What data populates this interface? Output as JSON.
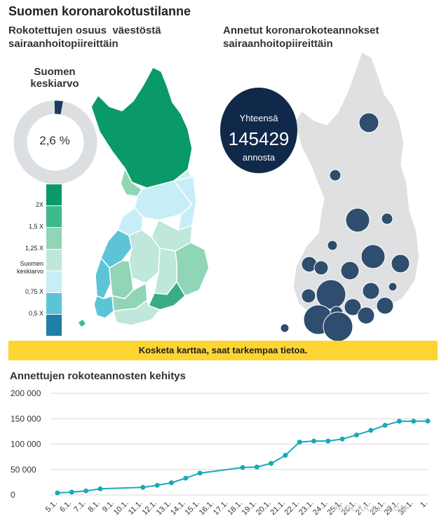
{
  "header": {
    "title": "Suomen koronarokotustilanne",
    "left_subtitle_line1": "Rokotettujen osuus  väestöstä",
    "left_subtitle_line2": "sairaanhoitopiireittäin",
    "right_subtitle_line1": "Annetut koronarokoteannokset",
    "right_subtitle_line2": "sairaanhoitopiireittäin"
  },
  "donut": {
    "label_line1": "Suomen",
    "label_line2": "keskiarvo",
    "value_text": "2,6 %",
    "fraction": 0.026,
    "color_fill": "#1d3a5f",
    "color_track": "#dcdfe2"
  },
  "legend": {
    "items": [
      {
        "label": "2X",
        "color": "#0a9968"
      },
      {
        "label": "1,5 X",
        "color": "#3dba8c"
      },
      {
        "label": "1,25 X",
        "color": "#8fd5b6"
      },
      {
        "label": "Suomen keskiarvo",
        "color": "#bfe7dc"
      },
      {
        "label": "0,75 X",
        "color": "#c7eef7"
      },
      {
        "label": "0,5 X",
        "color": "#5cc4d6"
      },
      {
        "label": "",
        "color": "#1f7fa6"
      }
    ]
  },
  "total": {
    "line1": "Yhteensä",
    "number": "145429",
    "line3": "annosta",
    "color": "#10294a"
  },
  "banner": {
    "text": "Kosketa karttaa, saat tarkempaa tietoa.",
    "color": "#fdd431"
  },
  "line_chart": {
    "title": "Annettujen rokoteannosten kehitys"
  },
  "watermark": "YAPLAKAL.COM",
  "chart_data": [
    {
      "type": "line",
      "title": "Annettujen rokoteannosten kehitys",
      "xlabel": "",
      "ylabel": "",
      "ylim": [
        0,
        200000
      ],
      "yticks": [
        0,
        50000,
        100000,
        150000,
        200000
      ],
      "ytick_labels": [
        "0",
        "50 000",
        "100 000",
        "150 000",
        "200 000"
      ],
      "grid": true,
      "series_color": "#19a9b5",
      "x": [
        "5.1.",
        "6.1.",
        "7.1.",
        "8.1.",
        "9.1.",
        "10.1.",
        "11.1.",
        "12.1.",
        "13.1.",
        "14.1.",
        "15.1.",
        "16.1.",
        "17.1.",
        "18.1.",
        "19.1.",
        "20.1.",
        "21.1.",
        "22.1.",
        "23.1.",
        "24.1.",
        "25.1.",
        "26.1.",
        "27.1.",
        "28.1.",
        "29.1.",
        "30.1.",
        "1.2."
      ],
      "x_tick_labels": [
        "5.1.",
        "6.1.",
        "7.1.",
        "8.1.",
        "9.1.",
        "10.1.",
        "11.1.",
        "12.1.",
        "13.1.",
        "14.1.",
        "15.1.",
        "16.1.",
        "17.1.",
        "18.1.",
        "19.1.",
        "20.1.",
        "21.1.",
        "22.1.",
        "23.1.",
        "24.1.",
        "25.1.",
        "26.1.",
        "27.1.",
        "28.1.",
        "29.1.",
        "30.1.",
        "1."
      ],
      "series": [
        {
          "points": [
            {
              "x": "5.1.",
              "y": 4000
            },
            {
              "x": "6.1.",
              "y": 5500
            },
            {
              "x": "7.1.",
              "y": 8000
            },
            {
              "x": "8.1.",
              "y": 12000
            },
            {
              "x": "11.1.",
              "y": 15000
            },
            {
              "x": "12.1.",
              "y": 19000
            },
            {
              "x": "13.1.",
              "y": 24000
            },
            {
              "x": "14.1.",
              "y": 33000
            },
            {
              "x": "15.1.",
              "y": 43000
            },
            {
              "x": "18.1.",
              "y": 54000
            },
            {
              "x": "19.1.",
              "y": 55000
            },
            {
              "x": "20.1.",
              "y": 62000
            },
            {
              "x": "21.1.",
              "y": 78000
            },
            {
              "x": "22.1.",
              "y": 104000
            },
            {
              "x": "23.1.",
              "y": 106000
            },
            {
              "x": "24.1.",
              "y": 106000
            },
            {
              "x": "25.1.",
              "y": 110000
            },
            {
              "x": "26.1.",
              "y": 118000
            },
            {
              "x": "27.1.",
              "y": 127000
            },
            {
              "x": "28.1.",
              "y": 137000
            },
            {
              "x": "29.1.",
              "y": 145000
            },
            {
              "x": "30.1.",
              "y": 145000
            },
            {
              "x": "1.2.",
              "y": 145429
            }
          ]
        }
      ]
    },
    {
      "type": "bubble",
      "title": "Annetut koronarokoteannokset sairaanhoitopiireittäin",
      "total": 145429,
      "bubble_color": "#2f4d6e"
    }
  ]
}
